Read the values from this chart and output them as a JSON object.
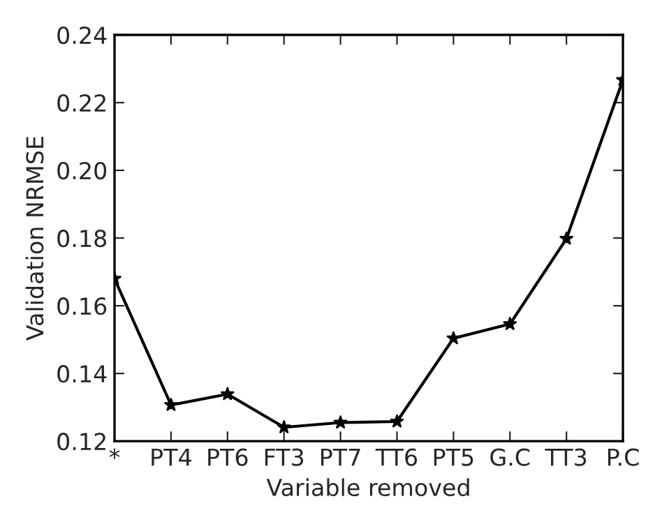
{
  "chart_data": {
    "type": "line",
    "xlabel": "Variable removed",
    "ylabel": "Validation NRMSE",
    "categories": [
      "*",
      "PT4",
      "PT6",
      "FT3",
      "PT7",
      "TT6",
      "PT5",
      "G.C",
      "TT3",
      "P.C"
    ],
    "series": [
      {
        "color": "#000000",
        "values": [
          0.168,
          0.1307,
          0.1339,
          0.1241,
          0.1255,
          0.1258,
          0.1504,
          0.1546,
          0.1798,
          0.2267
        ]
      }
    ],
    "ylim": [
      0.12,
      0.24
    ],
    "yticks": [
      {
        "value": 0.12,
        "label": "0.12"
      },
      {
        "value": 0.14,
        "label": "0.14"
      },
      {
        "value": 0.16,
        "label": "0.16"
      },
      {
        "value": 0.18,
        "label": "0.18"
      },
      {
        "value": 0.2,
        "label": "0.20"
      },
      {
        "value": 0.22,
        "label": "0.22"
      },
      {
        "value": 0.24,
        "label": "0.24"
      }
    ],
    "marker": "star",
    "line_style": "solid"
  }
}
